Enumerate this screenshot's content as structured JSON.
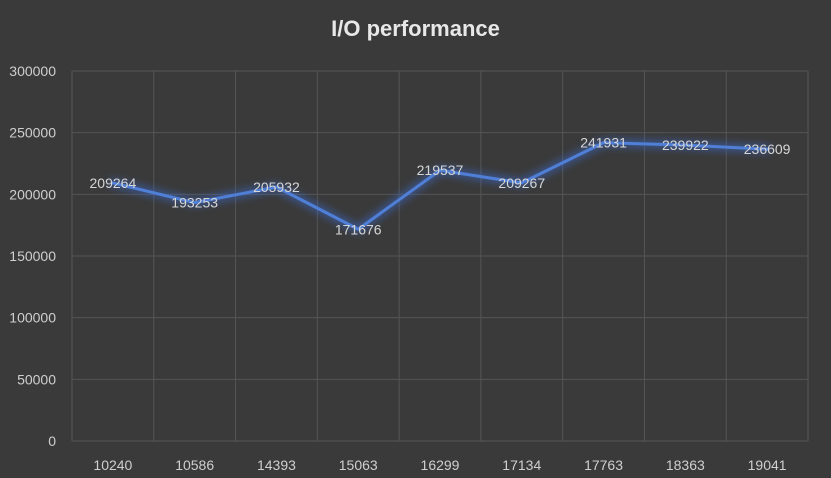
{
  "chart_data": {
    "type": "line",
    "title": "I/O performance",
    "xlabel": "",
    "ylabel": "",
    "categories": [
      "10240",
      "10586",
      "14393",
      "15063",
      "16299",
      "17134",
      "17763",
      "18363",
      "19041"
    ],
    "series": [
      {
        "values": [
          209264,
          193253,
          205932,
          171676,
          219537,
          209267,
          241931,
          239922,
          236609
        ]
      }
    ],
    "ylim": [
      0,
      300000
    ],
    "yticks": [
      0,
      50000,
      100000,
      150000,
      200000,
      250000,
      300000
    ],
    "grid": true,
    "legend": "none",
    "data_labels": true,
    "colors": {
      "background": "#3a3a3a",
      "grid": "#555555",
      "line": "#4f7fd6",
      "line_glow": "#3c6ed8",
      "text": "#cfcfcf"
    }
  }
}
